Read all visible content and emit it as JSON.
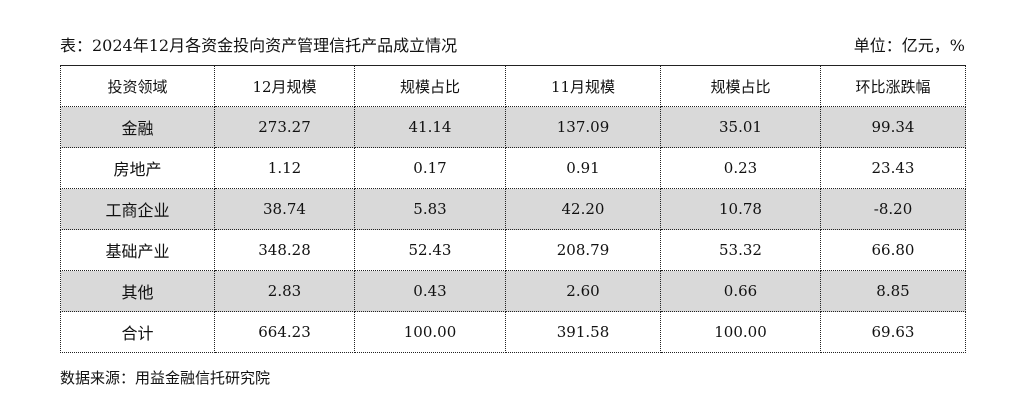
{
  "header": {
    "title": "表：2024年12月各资金投向资产管理信托产品成立情况",
    "unit": "单位：亿元，%"
  },
  "table": {
    "columns": [
      "投资领域",
      "12月规模",
      "规模占比",
      "11月规模",
      "规模占比",
      "环比涨跌幅"
    ],
    "rows": [
      [
        "金融",
        "273.27",
        "41.14",
        "137.09",
        "35.01",
        "99.34"
      ],
      [
        "房地产",
        "1.12",
        "0.17",
        "0.91",
        "0.23",
        "23.43"
      ],
      [
        "工商企业",
        "38.74",
        "5.83",
        "42.20",
        "10.78",
        "-8.20"
      ],
      [
        "基础产业",
        "348.28",
        "52.43",
        "208.79",
        "53.32",
        "66.80"
      ],
      [
        "其他",
        "2.83",
        "0.43",
        "2.60",
        "0.66",
        "8.85"
      ],
      [
        "合计",
        "664.23",
        "100.00",
        "391.58",
        "100.00",
        "69.63"
      ]
    ]
  },
  "footer": {
    "source": "数据来源：用益金融信托研究院"
  }
}
